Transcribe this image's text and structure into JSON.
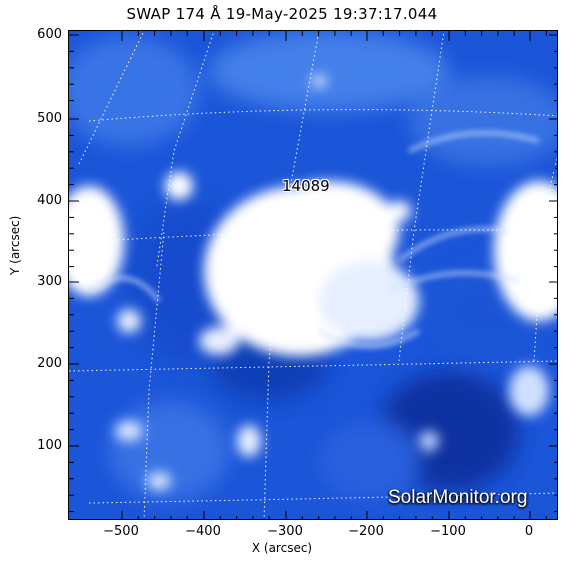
{
  "title": "SWAP 174 Å 19-May-2025 19:37:17.044",
  "xlabel": "X (arcsec)",
  "ylabel": "Y (arcsec)",
  "region_label": "14089",
  "watermark": "SolarMonitor.org",
  "x_ticks": [
    "−500",
    "−400",
    "−300",
    "−200",
    "−100",
    "0"
  ],
  "y_ticks": [
    "600",
    "500",
    "400",
    "300",
    "200",
    "100"
  ],
  "colors": {
    "background": "#1a4fd6",
    "bright": "#ffffff",
    "dark": "#0b2a8a"
  }
}
